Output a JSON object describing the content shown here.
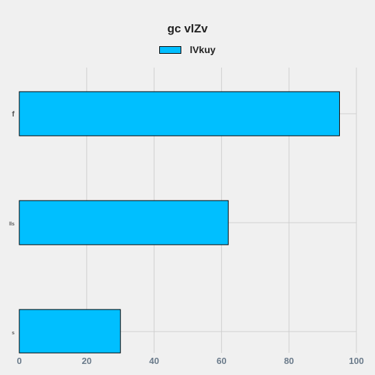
{
  "chart_data": {
    "type": "bar",
    "orientation": "horizontal",
    "title": "gc vlZv",
    "xlabel": "",
    "ylabel": "",
    "categories": [
      "f",
      "lls",
      "s"
    ],
    "series": [
      {
        "name": "lVkuy",
        "values": [
          95,
          62,
          30
        ],
        "color": "#00bfff"
      }
    ],
    "xlim": [
      0,
      100
    ],
    "xticks": [
      "0",
      "20",
      "40",
      "60",
      "80",
      "100"
    ],
    "grid": true,
    "legend_position": "top-center"
  }
}
